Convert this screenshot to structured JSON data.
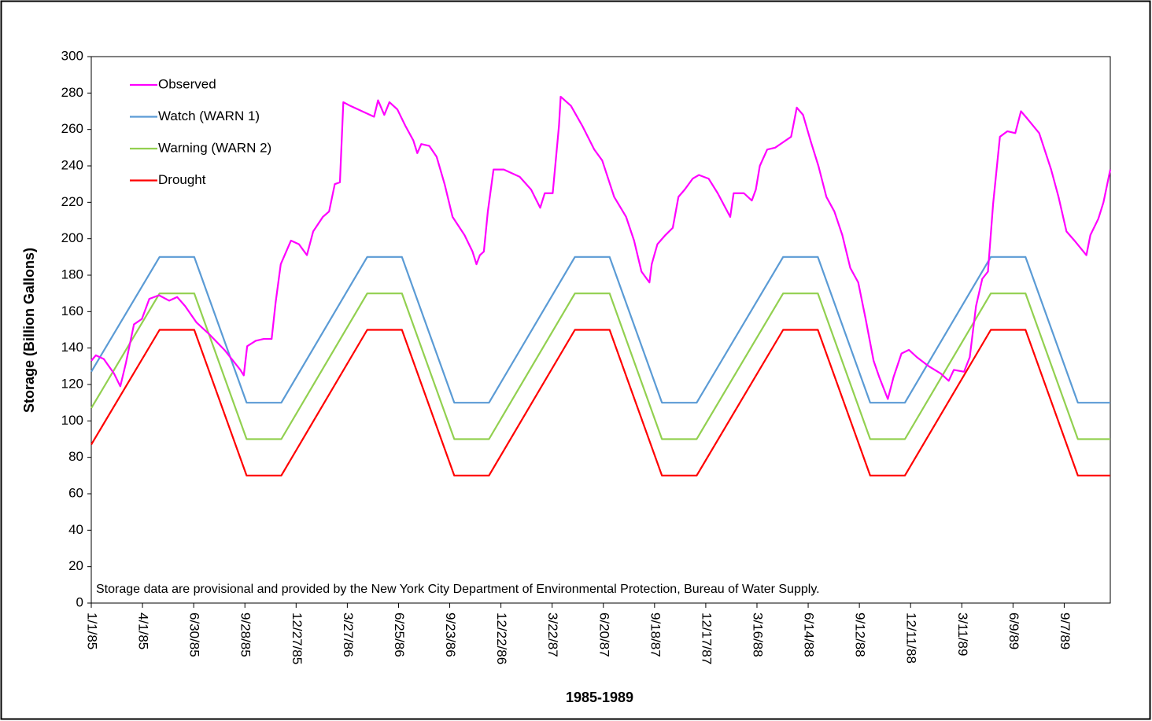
{
  "chart_data": {
    "type": "line",
    "x_label": "1985-1989",
    "y_label": "Storage (Billion Gallons)",
    "annotation": "Storage data are provisional and provided by the New York City Department of Environmental Protection, Bureau of Water Supply.",
    "xlim": [
      "1/1/85",
      "11/27/89"
    ],
    "xticks": [
      "1/1/85",
      "4/1/85",
      "6/30/85",
      "9/28/85",
      "12/27/85",
      "3/27/86",
      "6/25/86",
      "9/23/86",
      "12/22/86",
      "3/22/87",
      "6/20/87",
      "9/18/87",
      "12/17/87",
      "3/16/88",
      "6/14/88",
      "9/12/88",
      "12/11/88",
      "3/11/89",
      "6/9/89",
      "9/7/89"
    ],
    "ylim": [
      0,
      300
    ],
    "yticks": [
      0,
      20,
      40,
      60,
      80,
      100,
      120,
      140,
      160,
      180,
      200,
      220,
      240,
      260,
      280,
      300
    ],
    "grid": false,
    "legend": "upper left",
    "series": [
      {
        "name": "Observed",
        "color": "#ff00ff",
        "x": [
          "1/1/85",
          "1/9/85",
          "1/23/85",
          "2/10/85",
          "2/21/85",
          "3/3/85",
          "3/17/85",
          "3/31/85",
          "4/13/85",
          "4/30/85",
          "5/18/85",
          "6/1/85",
          "6/15/85",
          "7/5/85",
          "7/26/85",
          "8/23/85",
          "9/20/85",
          "9/26/85",
          "10/2/85",
          "10/17/85",
          "10/31/85",
          "11/14/85",
          "11/21/85",
          "11/30/85",
          "12/18/85",
          "1/1/86",
          "1/15/86",
          "1/26/86",
          "2/12/86",
          "2/23/86",
          "3/5/86",
          "3/14/86",
          "3/20/86",
          "4/1/86",
          "4/22/86",
          "5/13/86",
          "5/20/86",
          "5/31/86",
          "6/9/86",
          "6/23/86",
          "7/7/86",
          "7/21/86",
          "7/28/86",
          "8/4/86",
          "8/18/86",
          "8/31/86",
          "9/14/86",
          "9/28/86",
          "10/19/86",
          "11/2/86",
          "11/9/86",
          "11/15/86",
          "11/22/86",
          "11/29/86",
          "12/9/86",
          "12/27/86",
          "1/24/87",
          "2/13/87",
          "3/1/87",
          "3/9/87",
          "3/23/87",
          "4/3/87",
          "4/6/87",
          "4/24/87",
          "5/14/87",
          "6/4/87",
          "6/18/87",
          "7/9/87",
          "7/30/87",
          "8/13/87",
          "8/26/87",
          "9/9/87",
          "9/13/87",
          "9/23/87",
          "10/7/87",
          "10/20/87",
          "10/30/87",
          "11/10/87",
          "11/24/87",
          "12/5/87",
          "12/22/87",
          "1/7/88",
          "1/29/88",
          "2/4/88",
          "2/22/88",
          "3/7/88",
          "3/14/88",
          "3/21/88",
          "4/3/88",
          "4/17/88",
          "5/1/88",
          "5/15/88",
          "5/25/88",
          "6/5/88",
          "6/19/88",
          "7/2/88",
          "7/16/88",
          "7/30/88",
          "8/13/88",
          "8/27/88",
          "9/10/88",
          "9/23/88",
          "10/7/88",
          "10/17/88",
          "11/1/88",
          "11/11/88",
          "11/25/88",
          "12/8/88",
          "12/22/88",
          "1/12/89",
          "2/2/89",
          "2/16/89",
          "2/25/89",
          "3/15/89",
          "3/25/89",
          "4/5/89",
          "4/16/89",
          "4/26/89",
          "5/5/89",
          "5/17/89",
          "5/30/89",
          "6/13/89",
          "6/23/89",
          "7/4/89",
          "7/25/89",
          "8/15/89",
          "8/28/89",
          "9/11/89",
          "9/25/89",
          "10/16/89",
          "10/23/89",
          "11/6/89",
          "11/15/89",
          "11/27/89"
        ],
        "values": [
          133,
          136,
          134,
          126,
          119,
          132,
          153,
          156,
          167,
          169,
          166,
          168,
          163,
          154,
          148,
          139,
          128,
          125,
          141,
          144,
          145,
          145,
          165,
          186,
          199,
          197,
          191,
          204,
          212,
          215,
          230,
          231,
          275,
          273,
          270,
          267,
          276,
          268,
          275,
          271,
          262,
          254,
          247,
          252,
          251,
          245,
          230,
          212,
          202,
          193,
          186,
          191,
          193,
          215,
          238,
          238,
          234,
          227,
          217,
          225,
          225,
          262,
          278,
          273,
          262,
          249,
          243,
          223,
          212,
          199,
          182,
          176,
          186,
          197,
          202,
          206,
          223,
          227,
          233,
          235,
          233,
          225,
          212,
          225,
          225,
          221,
          227,
          240,
          249,
          250,
          253,
          256,
          272,
          268,
          253,
          240,
          223,
          215,
          202,
          184,
          176,
          156,
          133,
          124,
          112,
          124,
          137,
          139,
          135,
          130,
          126,
          122,
          128,
          127,
          135,
          163,
          178,
          182,
          219,
          256,
          259,
          258,
          270,
          266,
          258,
          238,
          223,
          204,
          199,
          191,
          202,
          211,
          220,
          238
        ]
      },
      {
        "name": "Watch (WARN 1)",
        "color": "#5b9bd5",
        "x": [
          "1/1/85",
          "5/1/85",
          "7/1/85",
          "10/1/85",
          "12/1/85",
          "5/1/86",
          "7/1/86",
          "10/1/86",
          "12/1/86",
          "5/1/87",
          "7/1/87",
          "10/1/87",
          "12/1/87",
          "5/1/88",
          "7/1/88",
          "10/1/88",
          "12/1/88",
          "5/1/89",
          "7/1/89",
          "10/1/89",
          "11/27/89"
        ],
        "values": [
          127,
          190,
          190,
          110,
          110,
          190,
          190,
          110,
          110,
          190,
          190,
          110,
          110,
          190,
          190,
          110,
          110,
          190,
          190,
          110,
          110
        ]
      },
      {
        "name": "Warning (WARN 2)",
        "color": "#92d050",
        "x": [
          "1/1/85",
          "5/1/85",
          "7/1/85",
          "10/1/85",
          "12/1/85",
          "5/1/86",
          "7/1/86",
          "10/1/86",
          "12/1/86",
          "5/1/87",
          "7/1/87",
          "10/1/87",
          "12/1/87",
          "5/1/88",
          "7/1/88",
          "10/1/88",
          "12/1/88",
          "5/1/89",
          "7/1/89",
          "10/1/89",
          "11/27/89"
        ],
        "values": [
          107,
          170,
          170,
          90,
          90,
          170,
          170,
          90,
          90,
          170,
          170,
          90,
          90,
          170,
          170,
          90,
          90,
          170,
          170,
          90,
          90
        ]
      },
      {
        "name": "Drought",
        "color": "#ff0000",
        "x": [
          "1/1/85",
          "5/1/85",
          "7/1/85",
          "10/1/85",
          "12/1/85",
          "5/1/86",
          "7/1/86",
          "10/1/86",
          "12/1/86",
          "5/1/87",
          "7/1/87",
          "10/1/87",
          "12/1/87",
          "5/1/88",
          "7/1/88",
          "10/1/88",
          "12/1/88",
          "5/1/89",
          "7/1/89",
          "10/1/89",
          "11/27/89"
        ],
        "values": [
          87,
          150,
          150,
          70,
          70,
          150,
          150,
          70,
          70,
          150,
          150,
          70,
          70,
          150,
          150,
          70,
          70,
          150,
          150,
          70,
          70
        ]
      }
    ]
  }
}
